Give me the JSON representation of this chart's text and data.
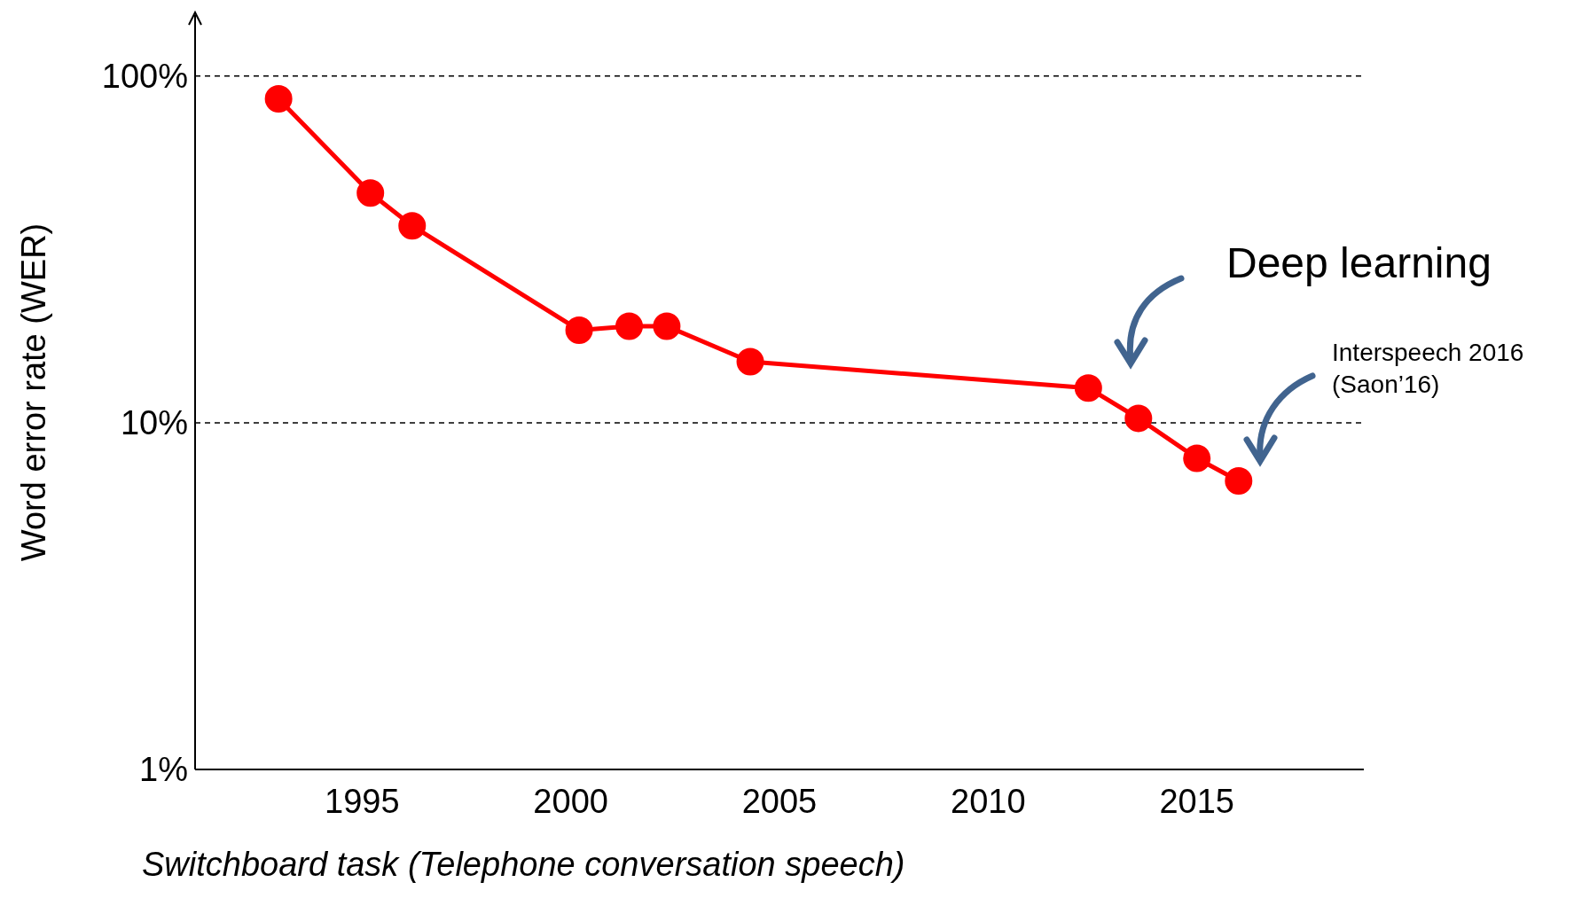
{
  "chart_data": {
    "type": "line",
    "ylabel": "Word error rate (WER)",
    "xlabel": "Switchboard task (Telephone conversation speech)",
    "x": [
      1993.0,
      1995.2,
      1996.2,
      2000.2,
      2001.4,
      2002.3,
      2004.3,
      2012.4,
      2013.6,
      2015.0,
      2016.0
    ],
    "series": [
      {
        "color": "#ff0000",
        "values": [
          86,
          46,
          37,
          18.5,
          19,
          19,
          15,
          12.6,
          10.3,
          7.9,
          6.8
        ]
      }
    ],
    "xlim": [
      1991,
      2019
    ],
    "xticks": [
      1995,
      2000,
      2005,
      2010,
      2015
    ],
    "ylim": [
      1,
      150
    ],
    "yticks": [
      {
        "value": 1,
        "label": "1%"
      },
      {
        "value": 10,
        "label": "10%"
      },
      {
        "value": 100,
        "label": "100%"
      }
    ],
    "log": "y",
    "grid": "y",
    "marker": "circle",
    "line_style": "solid",
    "legend": false,
    "annotations": [
      "Deep learning",
      "Interspeech 2016\n(Saon’16)"
    ]
  }
}
